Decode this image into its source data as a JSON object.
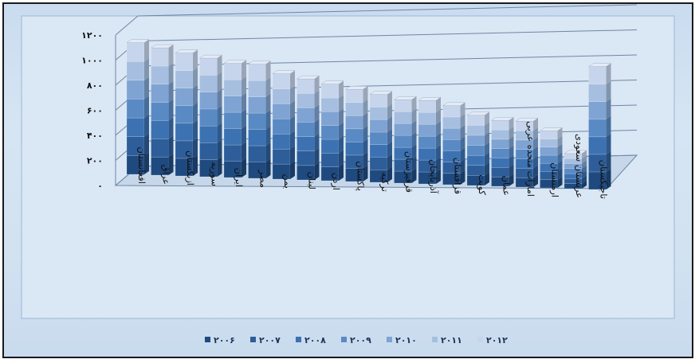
{
  "chart_data": {
    "type": "bar",
    "stacked": true,
    "three_d": true,
    "categories": [
      "افغانستان",
      "عراق",
      "ازبکستان",
      "سوریه",
      "ایران",
      "مصر",
      "یمن",
      "لبنان",
      "اردن",
      "پاکستان",
      "ترکیه",
      "قرقیزستان",
      "آذربایجان",
      "قزاقستان",
      "کویت",
      "عمان",
      "امارات متحده عربی",
      "ارمنستان",
      "عربستان سعودی",
      "تاجیکستان"
    ],
    "ytick_labels": [
      "۰",
      "۲۰۰",
      "۴۰۰",
      "۶۰۰",
      "۸۰۰",
      "۱۰۰۰",
      "۱۲۰۰"
    ],
    "ytick_values": [
      0,
      200,
      400,
      600,
      800,
      1000,
      1200
    ],
    "ylim": [
      0,
      1200
    ],
    "grid": true,
    "legend_position": "bottom",
    "series": [
      {
        "name": "۲۰۰۶",
        "color": "#1f4a7f",
        "values": [
          150,
          145,
          140,
          135,
          130,
          130,
          120,
          115,
          110,
          105,
          100,
          95,
          95,
          90,
          80,
          75,
          75,
          65,
          40,
          140
        ]
      },
      {
        "name": "۲۰۰۷",
        "color": "#2e5e99",
        "values": [
          150,
          145,
          140,
          135,
          130,
          130,
          120,
          115,
          110,
          105,
          100,
          95,
          95,
          90,
          80,
          75,
          75,
          65,
          40,
          140
        ]
      },
      {
        "name": "۲۰۰۸",
        "color": "#3d72b2",
        "values": [
          150,
          145,
          140,
          135,
          130,
          130,
          120,
          115,
          110,
          105,
          100,
          95,
          95,
          90,
          80,
          75,
          75,
          65,
          40,
          140
        ]
      },
      {
        "name": "۲۰۰۹",
        "color": "#5a8ac4",
        "values": [
          150,
          145,
          140,
          135,
          130,
          130,
          120,
          115,
          110,
          105,
          100,
          95,
          95,
          90,
          80,
          75,
          75,
          65,
          40,
          140
        ]
      },
      {
        "name": "۲۰۱۰",
        "color": "#7fa3d2",
        "values": [
          150,
          145,
          140,
          135,
          130,
          130,
          120,
          115,
          110,
          105,
          100,
          95,
          95,
          90,
          80,
          75,
          75,
          65,
          40,
          140
        ]
      },
      {
        "name": "۲۰۱۱",
        "color": "#a6bfe0",
        "values": [
          150,
          145,
          140,
          135,
          130,
          130,
          120,
          115,
          110,
          105,
          100,
          95,
          95,
          90,
          80,
          75,
          75,
          65,
          40,
          140
        ]
      },
      {
        "name": "۲۰۱۲",
        "color": "#c6d5ec",
        "values": [
          150,
          145,
          140,
          135,
          130,
          130,
          120,
          115,
          110,
          105,
          100,
          95,
          95,
          90,
          80,
          75,
          75,
          65,
          40,
          140
        ]
      }
    ]
  }
}
